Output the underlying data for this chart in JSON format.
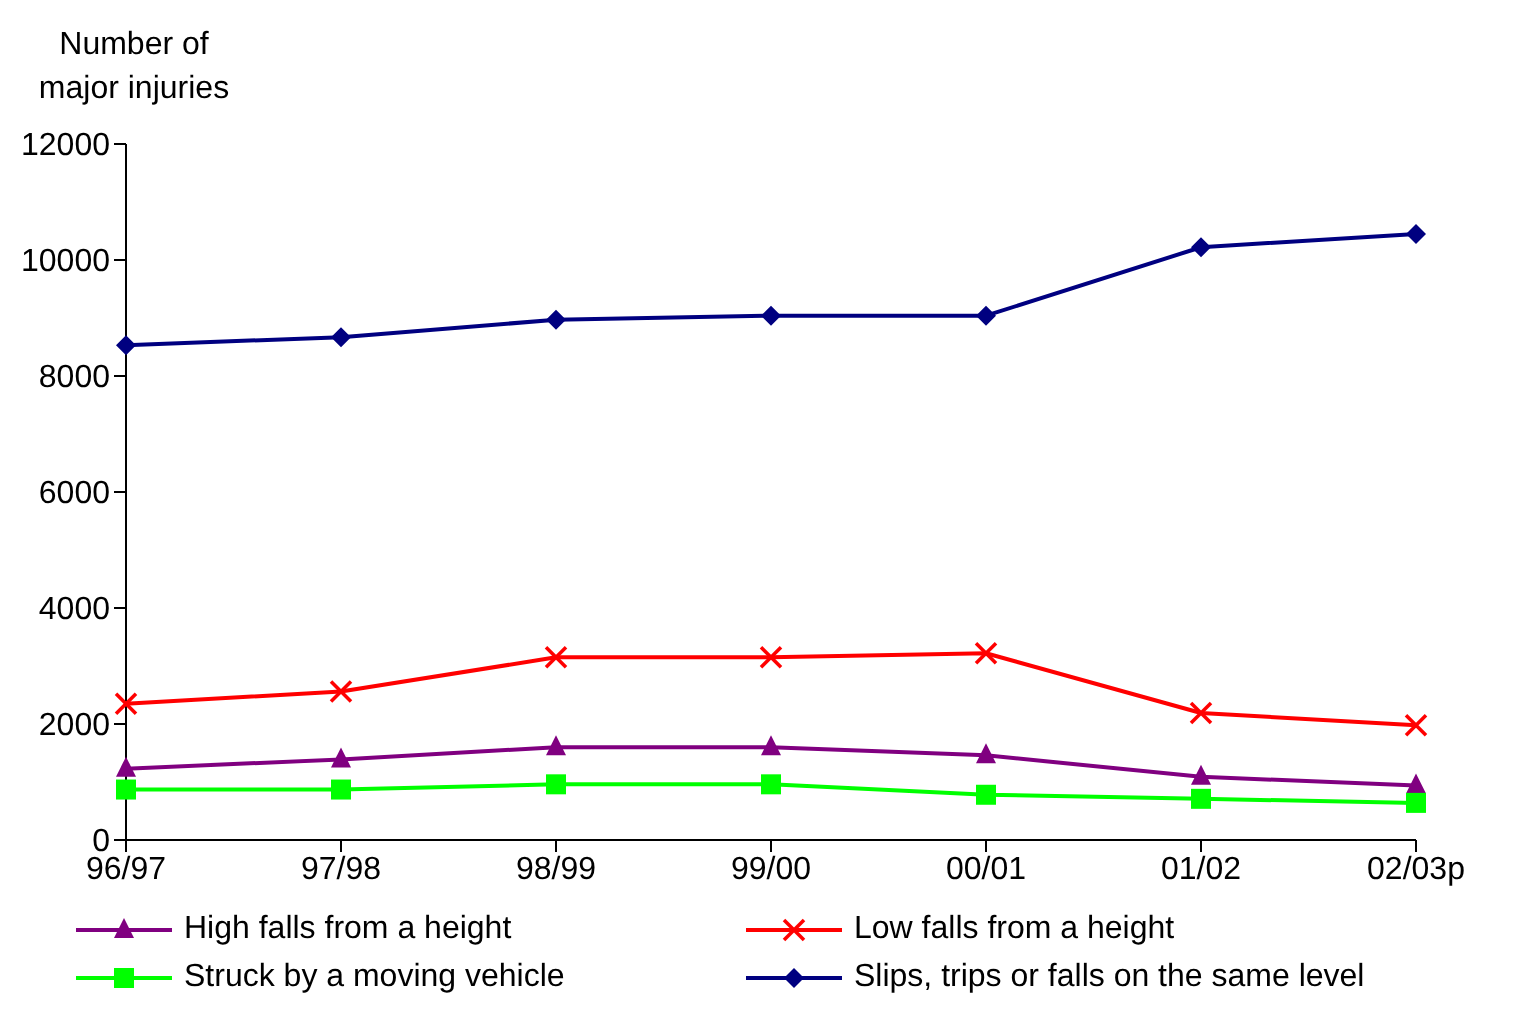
{
  "chart_data": {
    "type": "line",
    "ylabel": "Number of major injuries",
    "categories": [
      "96/97",
      "97/98",
      "98/99",
      "99/00",
      "00/01",
      "01/02",
      "02/03p"
    ],
    "ylim": [
      0,
      12000
    ],
    "yticks": [
      0,
      2000,
      4000,
      6000,
      8000,
      10000,
      12000
    ],
    "grid": false,
    "legend": "bottom",
    "series": [
      {
        "name": "High falls from a height",
        "color": "#800080",
        "marker": "triangle",
        "values": [
          1230,
          1390,
          1600,
          1600,
          1460,
          1090,
          940
        ]
      },
      {
        "name": "Low falls from a height",
        "color": "#ff0000",
        "marker": "cross",
        "values": [
          2350,
          2560,
          3150,
          3150,
          3220,
          2190,
          1980
        ]
      },
      {
        "name": "Struck by a moving vehicle",
        "color": "#00ff00",
        "marker": "square",
        "values": [
          870,
          870,
          960,
          960,
          780,
          710,
          640
        ]
      },
      {
        "name": "Slips, trips or falls on the same level",
        "color": "#000080",
        "marker": "diamond",
        "values": [
          8530,
          8670,
          8970,
          9040,
          9040,
          10220,
          10450
        ]
      }
    ]
  }
}
